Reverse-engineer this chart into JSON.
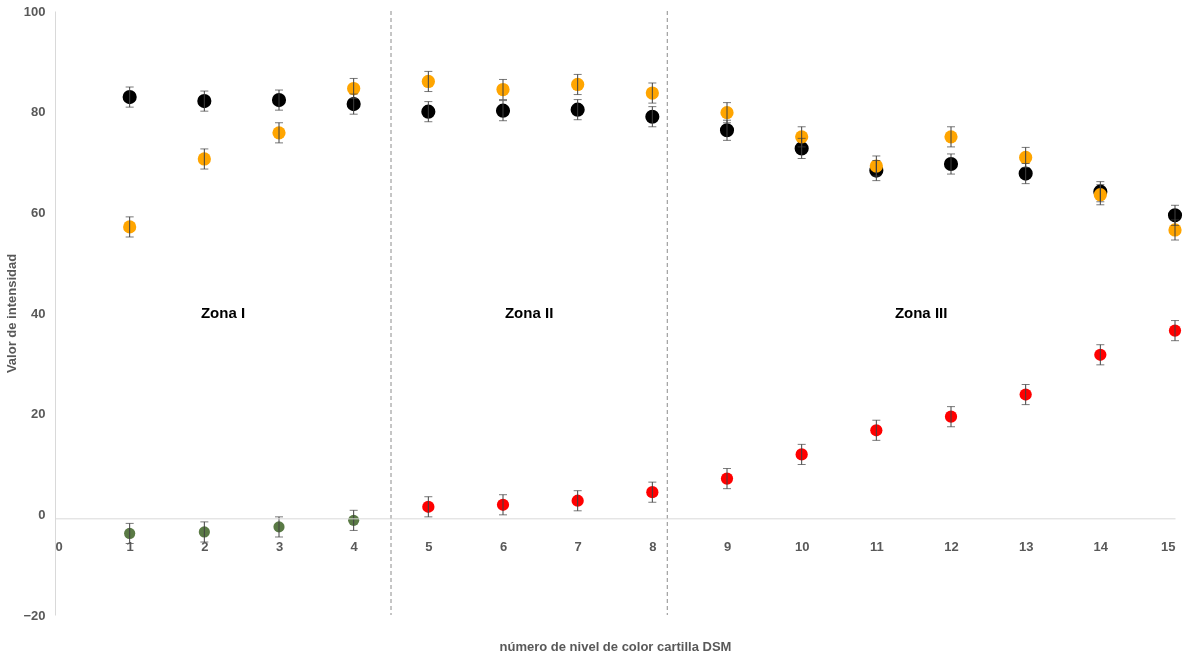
{
  "chart_data": {
    "type": "scatter",
    "xlabel": "número de nivel de color cartilla DSM",
    "ylabel": "Valor de intensidad",
    "xlim": [
      0,
      15
    ],
    "xticks": [
      0,
      1,
      2,
      3,
      4,
      5,
      6,
      7,
      8,
      9,
      10,
      11,
      12,
      13,
      14,
      15
    ],
    "ylim": [
      -20,
      100
    ],
    "yticks": [
      -20,
      0,
      20,
      40,
      60,
      80,
      100
    ],
    "grid": false,
    "marker": "circle",
    "legend": false,
    "series": [
      {
        "color": "#000000",
        "x": [
          1,
          2,
          3,
          4,
          5,
          6,
          7,
          8,
          9,
          10,
          11,
          12,
          13,
          14,
          15
        ],
        "values": [
          82.9,
          82.1,
          82.3,
          81.5,
          80.0,
          80.2,
          80.4,
          79.0,
          76.3,
          72.7,
          68.3,
          69.6,
          67.7,
          64.1,
          59.4
        ],
        "errors": [
          2,
          2,
          2,
          2,
          2,
          2,
          2,
          2,
          2,
          2,
          2,
          2,
          2,
          2,
          2
        ]
      },
      {
        "color": "#ffa500",
        "x": [
          1,
          2,
          3,
          4,
          5,
          6,
          7,
          8,
          9,
          10,
          11,
          12,
          13,
          14,
          15
        ],
        "values": [
          57.1,
          70.6,
          75.8,
          84.6,
          86.0,
          84.4,
          85.4,
          83.7,
          79.8,
          75.0,
          69.2,
          75.0,
          70.9,
          63.5,
          56.5
        ],
        "errors": [
          2,
          2,
          2,
          2,
          2,
          2,
          2,
          2,
          2,
          2,
          2,
          2,
          2,
          2,
          2
        ]
      },
      {
        "color": "#ff0000",
        "x": [
          5,
          6,
          7,
          8,
          9,
          10,
          11,
          12,
          13,
          14,
          15
        ],
        "values": [
          1.5,
          1.9,
          2.7,
          4.4,
          7.1,
          11.9,
          16.7,
          19.4,
          23.8,
          31.7,
          36.5
        ],
        "errors": [
          2,
          2,
          2,
          2,
          2,
          2,
          2,
          2,
          2,
          2,
          2
        ]
      },
      {
        "color": "#5a7a45",
        "x": [
          1,
          2,
          3,
          4
        ],
        "values": [
          -3.8,
          -3.5,
          -2.5,
          -1.2
        ],
        "errors": [
          2,
          2,
          2,
          2
        ]
      }
    ],
    "ref_lines": [
      {
        "axis": "x",
        "value": 4.5,
        "color": "#8c8c8c",
        "line_style": "dashed"
      },
      {
        "axis": "x",
        "value": 8.2,
        "color": "#8c8c8c",
        "line_style": "dashed"
      }
    ],
    "annotations": [
      "Zona I",
      "Zona II",
      "Zona III"
    ]
  }
}
